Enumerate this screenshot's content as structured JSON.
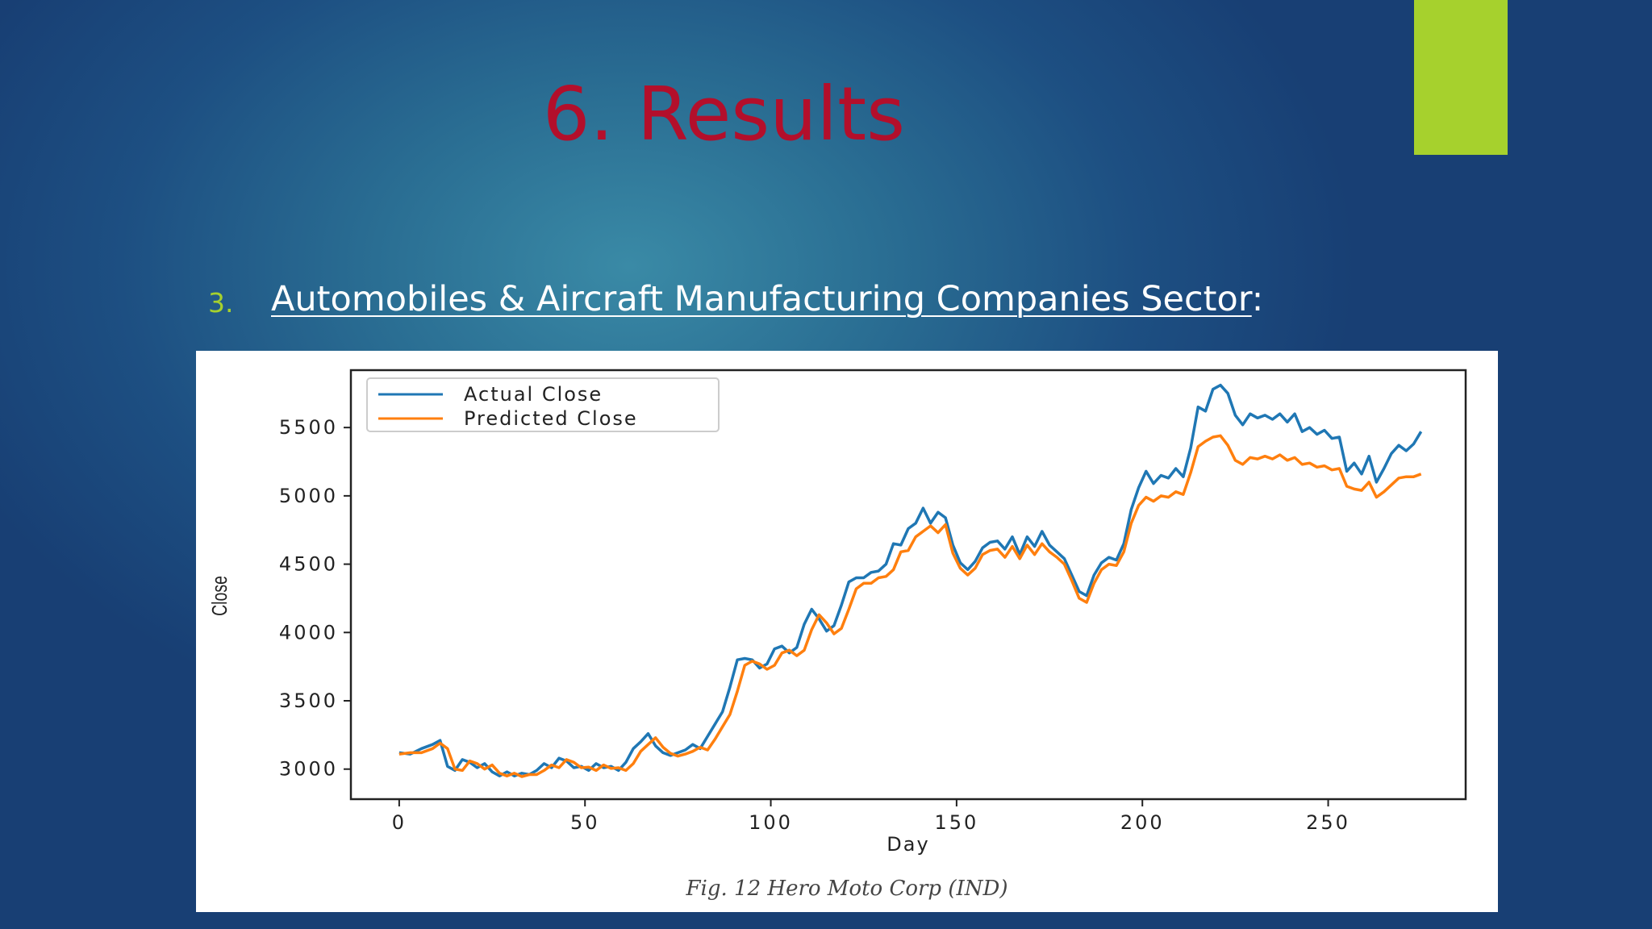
{
  "slide": {
    "title": "6. Results",
    "bullet_number": "3.",
    "heading_underlined": "Automobiles & Aircraft Manufacturing Companies Sector",
    "heading_suffix": ":",
    "caption": "Fig. 12 Hero Moto Corp (IND)"
  },
  "colors": {
    "accent_bar": "#a6d12d",
    "title": "#b30f2b",
    "actual_series": "#1f77b4",
    "predicted_series": "#ff7f0e"
  },
  "chart_data": {
    "type": "line",
    "title": "",
    "xlabel": "Day",
    "ylabel": "Close",
    "xlim": [
      -13,
      287
    ],
    "ylim": [
      2780,
      5920
    ],
    "xticks": [
      0,
      50,
      100,
      150,
      200,
      250
    ],
    "yticks": [
      3000,
      3500,
      4000,
      4500,
      5000,
      5500
    ],
    "grid": false,
    "legend_position": "upper-left",
    "series": [
      {
        "name": "Actual Close",
        "color": "#1f77b4",
        "points": [
          [
            0,
            3120
          ],
          [
            3,
            3110
          ],
          [
            6,
            3150
          ],
          [
            9,
            3180
          ],
          [
            11,
            3210
          ],
          [
            13,
            3020
          ],
          [
            15,
            2990
          ],
          [
            17,
            3070
          ],
          [
            19,
            3050
          ],
          [
            21,
            3010
          ],
          [
            23,
            3040
          ],
          [
            25,
            2980
          ],
          [
            27,
            2950
          ],
          [
            29,
            2980
          ],
          [
            31,
            2950
          ],
          [
            33,
            2970
          ],
          [
            35,
            2960
          ],
          [
            37,
            2990
          ],
          [
            39,
            3040
          ],
          [
            41,
            3010
          ],
          [
            43,
            3080
          ],
          [
            45,
            3060
          ],
          [
            47,
            3010
          ],
          [
            49,
            3020
          ],
          [
            51,
            2990
          ],
          [
            53,
            3040
          ],
          [
            55,
            3010
          ],
          [
            57,
            3020
          ],
          [
            59,
            2990
          ],
          [
            61,
            3050
          ],
          [
            63,
            3150
          ],
          [
            65,
            3200
          ],
          [
            67,
            3260
          ],
          [
            69,
            3170
          ],
          [
            71,
            3120
          ],
          [
            73,
            3100
          ],
          [
            75,
            3120
          ],
          [
            77,
            3140
          ],
          [
            79,
            3180
          ],
          [
            81,
            3150
          ],
          [
            83,
            3240
          ],
          [
            85,
            3330
          ],
          [
            87,
            3420
          ],
          [
            89,
            3600
          ],
          [
            91,
            3800
          ],
          [
            93,
            3810
          ],
          [
            95,
            3800
          ],
          [
            97,
            3740
          ],
          [
            99,
            3770
          ],
          [
            101,
            3880
          ],
          [
            103,
            3900
          ],
          [
            105,
            3850
          ],
          [
            107,
            3890
          ],
          [
            109,
            4060
          ],
          [
            111,
            4170
          ],
          [
            113,
            4100
          ],
          [
            115,
            4010
          ],
          [
            117,
            4050
          ],
          [
            119,
            4200
          ],
          [
            121,
            4370
          ],
          [
            123,
            4400
          ],
          [
            125,
            4400
          ],
          [
            127,
            4440
          ],
          [
            129,
            4450
          ],
          [
            131,
            4500
          ],
          [
            133,
            4650
          ],
          [
            135,
            4640
          ],
          [
            137,
            4760
          ],
          [
            139,
            4800
          ],
          [
            141,
            4910
          ],
          [
            143,
            4800
          ],
          [
            145,
            4880
          ],
          [
            147,
            4840
          ],
          [
            149,
            4640
          ],
          [
            151,
            4510
          ],
          [
            153,
            4460
          ],
          [
            155,
            4520
          ],
          [
            157,
            4620
          ],
          [
            159,
            4660
          ],
          [
            161,
            4670
          ],
          [
            163,
            4610
          ],
          [
            165,
            4700
          ],
          [
            167,
            4570
          ],
          [
            169,
            4700
          ],
          [
            171,
            4630
          ],
          [
            173,
            4740
          ],
          [
            175,
            4640
          ],
          [
            177,
            4590
          ],
          [
            179,
            4540
          ],
          [
            181,
            4420
          ],
          [
            183,
            4300
          ],
          [
            185,
            4270
          ],
          [
            187,
            4420
          ],
          [
            189,
            4510
          ],
          [
            191,
            4550
          ],
          [
            193,
            4530
          ],
          [
            195,
            4650
          ],
          [
            197,
            4900
          ],
          [
            199,
            5060
          ],
          [
            201,
            5180
          ],
          [
            203,
            5090
          ],
          [
            205,
            5150
          ],
          [
            207,
            5130
          ],
          [
            209,
            5200
          ],
          [
            211,
            5140
          ],
          [
            213,
            5350
          ],
          [
            215,
            5650
          ],
          [
            217,
            5620
          ],
          [
            219,
            5780
          ],
          [
            221,
            5810
          ],
          [
            223,
            5750
          ],
          [
            225,
            5590
          ],
          [
            227,
            5520
          ],
          [
            229,
            5600
          ],
          [
            231,
            5570
          ],
          [
            233,
            5590
          ],
          [
            235,
            5560
          ],
          [
            237,
            5600
          ],
          [
            239,
            5540
          ],
          [
            241,
            5600
          ],
          [
            243,
            5470
          ],
          [
            245,
            5500
          ],
          [
            247,
            5450
          ],
          [
            249,
            5480
          ],
          [
            251,
            5420
          ],
          [
            253,
            5430
          ],
          [
            255,
            5180
          ],
          [
            257,
            5240
          ],
          [
            259,
            5160
          ],
          [
            261,
            5290
          ],
          [
            263,
            5100
          ],
          [
            265,
            5200
          ],
          [
            267,
            5310
          ],
          [
            269,
            5370
          ],
          [
            271,
            5330
          ],
          [
            273,
            5380
          ],
          [
            275,
            5470
          ]
        ]
      },
      {
        "name": "Predicted Close",
        "color": "#ff7f0e",
        "points": [
          [
            0,
            3110
          ],
          [
            3,
            3120
          ],
          [
            6,
            3120
          ],
          [
            9,
            3150
          ],
          [
            11,
            3190
          ],
          [
            13,
            3150
          ],
          [
            15,
            3000
          ],
          [
            17,
            2990
          ],
          [
            19,
            3060
          ],
          [
            21,
            3040
          ],
          [
            23,
            3000
          ],
          [
            25,
            3030
          ],
          [
            27,
            2970
          ],
          [
            29,
            2950
          ],
          [
            31,
            2970
          ],
          [
            33,
            2945
          ],
          [
            35,
            2960
          ],
          [
            37,
            2960
          ],
          [
            39,
            2990
          ],
          [
            41,
            3030
          ],
          [
            43,
            3010
          ],
          [
            45,
            3070
          ],
          [
            47,
            3050
          ],
          [
            49,
            3010
          ],
          [
            51,
            3015
          ],
          [
            53,
            2990
          ],
          [
            55,
            3030
          ],
          [
            57,
            3005
          ],
          [
            59,
            3010
          ],
          [
            61,
            2990
          ],
          [
            63,
            3040
          ],
          [
            65,
            3130
          ],
          [
            67,
            3180
          ],
          [
            69,
            3230
          ],
          [
            71,
            3160
          ],
          [
            73,
            3115
          ],
          [
            75,
            3095
          ],
          [
            77,
            3110
          ],
          [
            79,
            3130
          ],
          [
            81,
            3160
          ],
          [
            83,
            3140
          ],
          [
            85,
            3220
          ],
          [
            87,
            3310
          ],
          [
            89,
            3400
          ],
          [
            91,
            3570
          ],
          [
            93,
            3760
          ],
          [
            95,
            3790
          ],
          [
            97,
            3770
          ],
          [
            99,
            3730
          ],
          [
            101,
            3760
          ],
          [
            103,
            3850
          ],
          [
            105,
            3870
          ],
          [
            107,
            3830
          ],
          [
            109,
            3870
          ],
          [
            111,
            4020
          ],
          [
            113,
            4130
          ],
          [
            115,
            4070
          ],
          [
            117,
            3990
          ],
          [
            119,
            4030
          ],
          [
            121,
            4170
          ],
          [
            123,
            4320
          ],
          [
            125,
            4360
          ],
          [
            127,
            4360
          ],
          [
            129,
            4400
          ],
          [
            131,
            4410
          ],
          [
            133,
            4460
          ],
          [
            135,
            4590
          ],
          [
            137,
            4600
          ],
          [
            139,
            4700
          ],
          [
            141,
            4740
          ],
          [
            143,
            4780
          ],
          [
            145,
            4730
          ],
          [
            147,
            4790
          ],
          [
            149,
            4580
          ],
          [
            151,
            4470
          ],
          [
            153,
            4420
          ],
          [
            155,
            4470
          ],
          [
            157,
            4570
          ],
          [
            159,
            4600
          ],
          [
            161,
            4610
          ],
          [
            163,
            4550
          ],
          [
            165,
            4630
          ],
          [
            167,
            4540
          ],
          [
            169,
            4640
          ],
          [
            171,
            4570
          ],
          [
            173,
            4650
          ],
          [
            175,
            4590
          ],
          [
            177,
            4550
          ],
          [
            179,
            4500
          ],
          [
            181,
            4380
          ],
          [
            183,
            4250
          ],
          [
            185,
            4220
          ],
          [
            187,
            4360
          ],
          [
            189,
            4460
          ],
          [
            191,
            4500
          ],
          [
            193,
            4490
          ],
          [
            195,
            4590
          ],
          [
            197,
            4800
          ],
          [
            199,
            4930
          ],
          [
            201,
            4990
          ],
          [
            203,
            4960
          ],
          [
            205,
            5000
          ],
          [
            207,
            4990
          ],
          [
            209,
            5030
          ],
          [
            211,
            5010
          ],
          [
            213,
            5170
          ],
          [
            215,
            5360
          ],
          [
            217,
            5400
          ],
          [
            219,
            5430
          ],
          [
            221,
            5440
          ],
          [
            223,
            5370
          ],
          [
            225,
            5260
          ],
          [
            227,
            5230
          ],
          [
            229,
            5280
          ],
          [
            231,
            5270
          ],
          [
            233,
            5290
          ],
          [
            235,
            5270
          ],
          [
            237,
            5300
          ],
          [
            239,
            5260
          ],
          [
            241,
            5280
          ],
          [
            243,
            5230
          ],
          [
            245,
            5240
          ],
          [
            247,
            5210
          ],
          [
            249,
            5220
          ],
          [
            251,
            5190
          ],
          [
            253,
            5200
          ],
          [
            255,
            5070
          ],
          [
            257,
            5050
          ],
          [
            259,
            5040
          ],
          [
            261,
            5100
          ],
          [
            263,
            4990
          ],
          [
            265,
            5030
          ],
          [
            267,
            5080
          ],
          [
            269,
            5130
          ],
          [
            271,
            5140
          ],
          [
            273,
            5140
          ],
          [
            275,
            5160
          ]
        ]
      }
    ]
  }
}
